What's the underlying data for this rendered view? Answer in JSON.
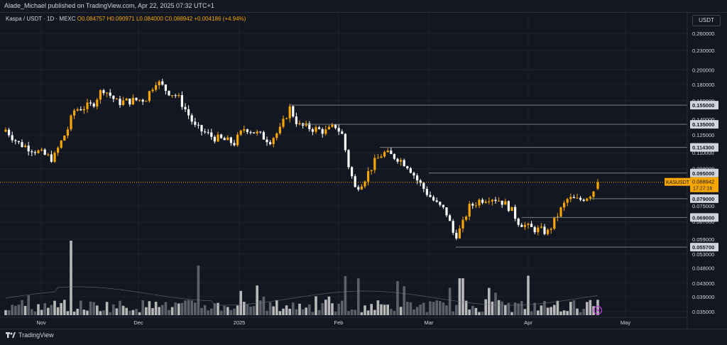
{
  "header": {
    "publisher_line": "Alade_Michael published on TradingView.com, Apr 22, 2025 07:32 UTC+1"
  },
  "legend": {
    "symbol": "Kaspa / USDT · 1D · MEXC",
    "ohlc": "O0.084757 H0.090971 L0.084000 C0.088942 +0.004186 (+4.94%)"
  },
  "currency_label": "USDT",
  "footer": {
    "brand": "TradingView"
  },
  "colors": {
    "background": "#131722",
    "up": "#f7a600",
    "down": "#ffffff",
    "grid": "#1e222d",
    "level_line": "#787b86",
    "volume_up": "#b8b8b8",
    "volume_down": "#5d606b"
  },
  "icons": {
    "alert": "lightning-icon",
    "brand": "tradingview-logo-icon"
  },
  "chart_data": {
    "type": "candlestick",
    "title": "Kaspa / USDT · 1D · MEXC",
    "y_scale": "log",
    "y_axis_ticks": [
      "0.260000",
      "0.230000",
      "0.200000",
      "0.180000",
      "0.160000",
      "0.140000",
      "0.125000",
      "0.110000",
      "0.098000",
      "0.087000",
      "0.075000",
      "0.067000",
      "0.059000",
      "0.053000",
      "0.048000",
      "0.043000",
      "0.039000",
      "0.035000"
    ],
    "x_axis_ticks": [
      "Nov",
      "Dec",
      "2025",
      "Feb",
      "Mar",
      "Apr",
      "May"
    ],
    "horizontal_levels": [
      {
        "label": "0.155000",
        "value": 0.155
      },
      {
        "label": "0.135000",
        "value": 0.135
      },
      {
        "label": "0.114300",
        "value": 0.1143
      },
      {
        "label": "0.095000",
        "value": 0.095
      },
      {
        "label": "0.079000",
        "value": 0.079
      },
      {
        "label": "0.069000",
        "value": 0.069
      },
      {
        "label": "0.055700",
        "value": 0.0557
      }
    ],
    "current_price": {
      "symbol": "KASUSDT",
      "price": "0.088942",
      "countdown": "17:27:16",
      "value": 0.088942
    },
    "last_candle": {
      "open": 0.084757,
      "high": 0.090971,
      "low": 0.084,
      "close": 0.088942
    }
  }
}
